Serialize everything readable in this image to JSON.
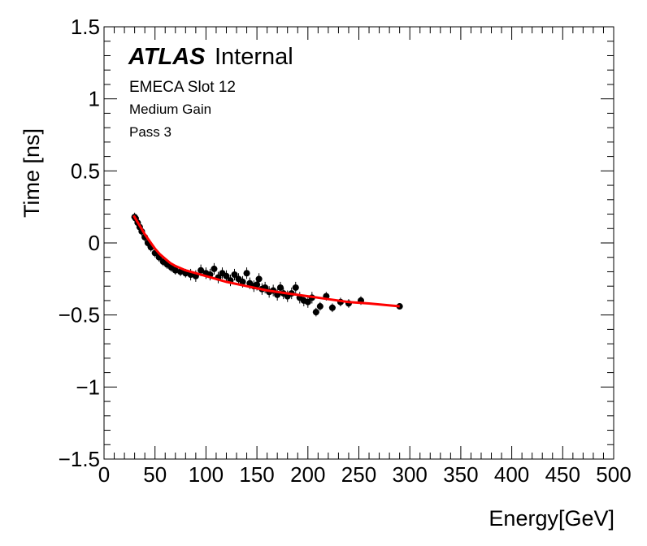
{
  "chart_data": {
    "type": "scatter",
    "title": "",
    "xlabel": "Energy[GeV]",
    "ylabel": "Time [ns]",
    "xlim": [
      0,
      500
    ],
    "ylim": [
      -1.5,
      1.5
    ],
    "xticks": [
      0,
      50,
      100,
      150,
      200,
      250,
      300,
      350,
      400,
      450,
      500
    ],
    "yticks": [
      -1.5,
      -1,
      -0.5,
      0,
      0.5,
      1,
      1.5
    ],
    "xtick_labels": [
      "0",
      "50",
      "100",
      "150",
      "200",
      "250",
      "300",
      "350",
      "400",
      "450",
      "500"
    ],
    "ytick_labels": [
      "−1.5",
      "−1",
      "−0.5",
      "0",
      "0.5",
      "1",
      "1.5"
    ],
    "annotations": {
      "atlas": "ATLAS",
      "internal": "Internal",
      "line1": "EMECA Slot 12",
      "line2": "Medium Gain",
      "line3": "Pass 3"
    },
    "series": [
      {
        "name": "data",
        "kind": "points_with_errors",
        "color": "#000000",
        "x": [
          30,
          31,
          33,
          35,
          37,
          40,
          43,
          46,
          50,
          54,
          58,
          62,
          66,
          70,
          75,
          80,
          85,
          90,
          95,
          100,
          104,
          108,
          112,
          116,
          120,
          124,
          128,
          132,
          136,
          140,
          143,
          147,
          150,
          152,
          155,
          158,
          162,
          166,
          170,
          173,
          176,
          180,
          184,
          188,
          192,
          196,
          200,
          204,
          208,
          212,
          218,
          224,
          232,
          240,
          252,
          290
        ],
        "y": [
          0.18,
          0.17,
          0.14,
          0.11,
          0.08,
          0.04,
          0.0,
          -0.03,
          -0.07,
          -0.1,
          -0.13,
          -0.15,
          -0.17,
          -0.19,
          -0.2,
          -0.21,
          -0.22,
          -0.23,
          -0.19,
          -0.21,
          -0.22,
          -0.18,
          -0.24,
          -0.21,
          -0.23,
          -0.26,
          -0.22,
          -0.25,
          -0.27,
          -0.21,
          -0.28,
          -0.3,
          -0.29,
          -0.25,
          -0.32,
          -0.31,
          -0.34,
          -0.33,
          -0.36,
          -0.31,
          -0.35,
          -0.37,
          -0.35,
          -0.31,
          -0.38,
          -0.4,
          -0.41,
          -0.38,
          -0.48,
          -0.44,
          -0.37,
          -0.45,
          -0.41,
          -0.42,
          -0.4,
          -0.44
        ],
        "yerr": [
          0.03,
          0.03,
          0.03,
          0.03,
          0.03,
          0.03,
          0.03,
          0.03,
          0.03,
          0.03,
          0.03,
          0.03,
          0.03,
          0.03,
          0.03,
          0.03,
          0.04,
          0.04,
          0.04,
          0.04,
          0.04,
          0.04,
          0.04,
          0.04,
          0.04,
          0.04,
          0.04,
          0.04,
          0.04,
          0.04,
          0.04,
          0.04,
          0.04,
          0.04,
          0.04,
          0.04,
          0.04,
          0.04,
          0.04,
          0.04,
          0.04,
          0.04,
          0.04,
          0.04,
          0.04,
          0.04,
          0.04,
          0.04,
          0.03,
          0.03,
          0.03,
          0.03,
          0.03,
          0.03,
          0.03,
          0.02
        ]
      },
      {
        "name": "fit",
        "kind": "line",
        "color": "#ff0000",
        "x": [
          29,
          35,
          40,
          45,
          50,
          55,
          60,
          65,
          70,
          80,
          90,
          100,
          110,
          120,
          140,
          160,
          180,
          200,
          220,
          240,
          260,
          290
        ],
        "y": [
          0.19,
          0.12,
          0.06,
          0.01,
          -0.04,
          -0.08,
          -0.11,
          -0.14,
          -0.16,
          -0.19,
          -0.21,
          -0.23,
          -0.25,
          -0.27,
          -0.3,
          -0.33,
          -0.35,
          -0.37,
          -0.39,
          -0.41,
          -0.42,
          -0.44
        ]
      }
    ]
  }
}
